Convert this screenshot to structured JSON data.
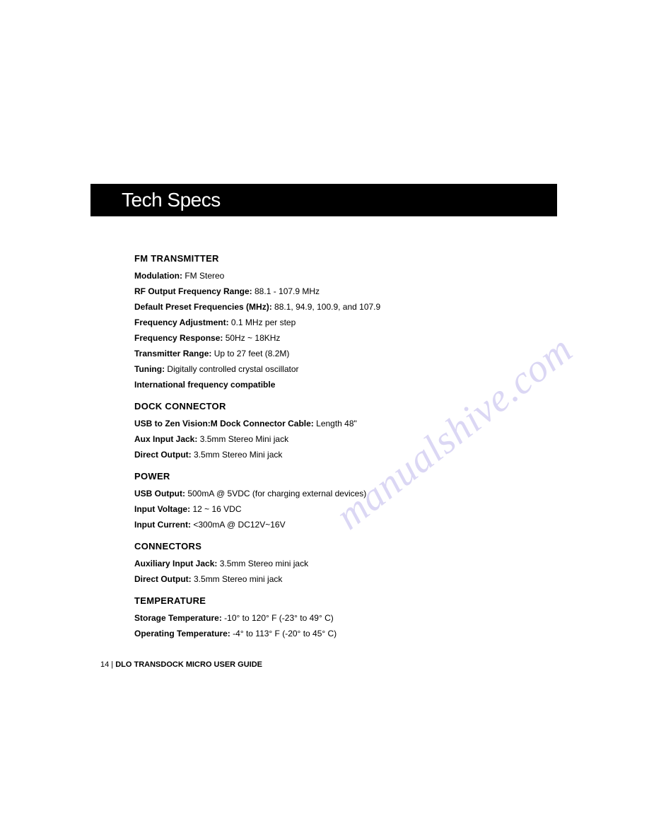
{
  "header": {
    "title": "Tech Specs"
  },
  "sections": {
    "fm_transmitter": {
      "heading": "FM TRANSMITTER",
      "specs": {
        "modulation": {
          "label": "Modulation:",
          "value": " FM Stereo"
        },
        "rf_output": {
          "label": "RF Output Frequency Range:",
          "value": " 88.1 - 107.9 MHz"
        },
        "default_preset": {
          "label": "Default Preset Frequencies (MHz):",
          "value": " 88.1, 94.9, 100.9, and 107.9"
        },
        "freq_adjust": {
          "label": "Frequency Adjustment:",
          "value": " 0.1 MHz per step"
        },
        "freq_response": {
          "label": "Frequency Response:",
          "value": " 50Hz ~ 18KHz"
        },
        "transmitter_range": {
          "label": "Transmitter Range:",
          "value": " Up to 27 feet (8.2M)"
        },
        "tuning": {
          "label": "Tuning:",
          "value": " Digitally controlled crystal oscillator"
        },
        "intl_freq": {
          "label": "International frequency compatible",
          "value": ""
        }
      }
    },
    "dock_connector": {
      "heading": "DOCK CONNECTOR",
      "specs": {
        "usb_cable": {
          "label": "USB to Zen Vision:M Dock Connector Cable:",
          "value": " Length 48\""
        },
        "aux_input": {
          "label": "Aux Input Jack:",
          "value": " 3.5mm Stereo Mini jack"
        },
        "direct_output": {
          "label": "Direct Output:",
          "value": " 3.5mm Stereo Mini jack"
        }
      }
    },
    "power": {
      "heading": "POWER",
      "specs": {
        "usb_output": {
          "label": "USB Output:",
          "value": " 500mA @ 5VDC (for charging external devices)"
        },
        "input_voltage": {
          "label": "Input Voltage:",
          "value": " 12 ~ 16 VDC"
        },
        "input_current": {
          "label": "Input Current:",
          "value": " <300mA @ DC12V~16V"
        }
      }
    },
    "connectors": {
      "heading": "CONNECTORS",
      "specs": {
        "aux_input": {
          "label": "Auxiliary Input Jack:",
          "value": " 3.5mm Stereo mini jack"
        },
        "direct_output": {
          "label": "Direct Output:",
          "value": " 3.5mm Stereo mini jack"
        }
      }
    },
    "temperature": {
      "heading": "TEMPERATURE",
      "specs": {
        "storage": {
          "label": "Storage Temperature:",
          "value": " -10° to 120° F (-23° to 49° C)"
        },
        "operating": {
          "label": "Operating Temperature:",
          "value": " -4° to 113° F (-20° to 45° C)"
        }
      }
    }
  },
  "footer": {
    "page": "14",
    "divider": " | ",
    "title": "DLO TRANSDOCK MICRO USER GUIDE"
  },
  "watermark": {
    "text": "manualshive.com"
  }
}
